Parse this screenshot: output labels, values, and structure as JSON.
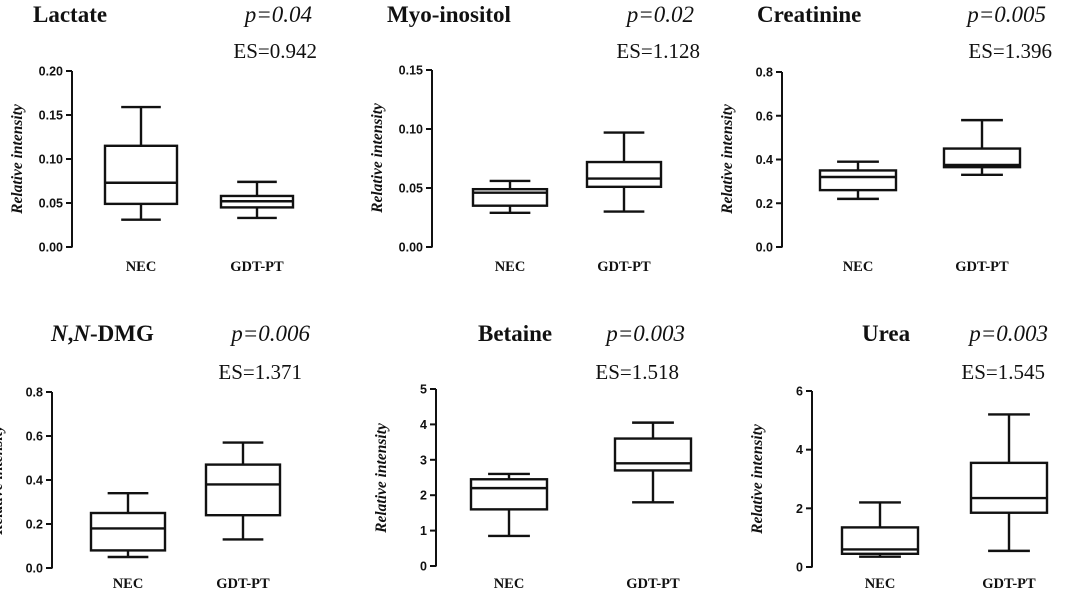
{
  "chart_data": [
    {
      "type": "box",
      "title": "Lactate",
      "title_parts": [
        {
          "text": "Lactate",
          "italic": false
        }
      ],
      "p_value": "p=0.04",
      "effect_size": "ES=0.942",
      "ylabel": "Relative intensity",
      "categories": [
        "NEC",
        "GDT-PT"
      ],
      "yticks": [
        "0.00",
        "0.05",
        "0.10",
        "0.15",
        "0.20"
      ],
      "ylim": [
        0,
        0.2
      ],
      "boxes": [
        {
          "name": "NEC",
          "min": 0.031,
          "q1": 0.049,
          "median": 0.073,
          "q3": 0.115,
          "max": 0.159
        },
        {
          "name": "GDT-PT",
          "min": 0.033,
          "q1": 0.045,
          "median": 0.052,
          "q3": 0.058,
          "max": 0.074
        }
      ]
    },
    {
      "type": "box",
      "title": "Myo-inositol",
      "title_parts": [
        {
          "text": "Myo-inositol",
          "italic": false
        }
      ],
      "p_value": "p=0.02",
      "effect_size": "ES=1.128",
      "ylabel": "Relative intensity",
      "categories": [
        "NEC",
        "GDT-PT"
      ],
      "yticks": [
        "0.00",
        "0.05",
        "0.10",
        "0.15"
      ],
      "ylim": [
        0,
        0.15
      ],
      "boxes": [
        {
          "name": "NEC",
          "min": 0.029,
          "q1": 0.035,
          "median": 0.046,
          "q3": 0.049,
          "max": 0.056
        },
        {
          "name": "GDT-PT",
          "min": 0.03,
          "q1": 0.051,
          "median": 0.058,
          "q3": 0.072,
          "max": 0.097
        }
      ]
    },
    {
      "type": "box",
      "title": "Creatinine",
      "title_parts": [
        {
          "text": "Creatinine",
          "italic": false
        }
      ],
      "p_value": "p=0.005",
      "effect_size": "ES=1.396",
      "ylabel": "Relative intensity",
      "categories": [
        "NEC",
        "GDT-PT"
      ],
      "yticks": [
        "0.0",
        "0.2",
        "0.4",
        "0.6",
        "0.8"
      ],
      "ylim": [
        0,
        0.8
      ],
      "boxes": [
        {
          "name": "NEC",
          "min": 0.22,
          "q1": 0.26,
          "median": 0.32,
          "q3": 0.35,
          "max": 0.39
        },
        {
          "name": "GDT-PT",
          "min": 0.33,
          "q1": 0.365,
          "median": 0.375,
          "q3": 0.45,
          "max": 0.58
        }
      ]
    },
    {
      "type": "box",
      "title": "N,N-DMG",
      "title_parts": [
        {
          "text": "N",
          "italic": true
        },
        {
          "text": ",",
          "italic": false
        },
        {
          "text": "N",
          "italic": true
        },
        {
          "text": "-DMG",
          "italic": false
        }
      ],
      "p_value": "p=0.006",
      "effect_size": "ES=1.371",
      "ylabel": "Relative intensity",
      "categories": [
        "NEC",
        "GDT-PT"
      ],
      "yticks": [
        "0.0",
        "0.2",
        "0.4",
        "0.6",
        "0.8"
      ],
      "ylim": [
        0,
        0.8
      ],
      "boxes": [
        {
          "name": "NEC",
          "min": 0.05,
          "q1": 0.08,
          "median": 0.18,
          "q3": 0.25,
          "max": 0.34
        },
        {
          "name": "GDT-PT",
          "min": 0.13,
          "q1": 0.24,
          "median": 0.38,
          "q3": 0.47,
          "max": 0.57
        }
      ]
    },
    {
      "type": "box",
      "title": "Betaine",
      "title_parts": [
        {
          "text": "Betaine",
          "italic": false
        }
      ],
      "p_value": "p=0.003",
      "effect_size": "ES=1.518",
      "ylabel": "Relative intensity",
      "categories": [
        "NEC",
        "GDT-PT"
      ],
      "yticks": [
        "0",
        "1",
        "2",
        "3",
        "4",
        "5"
      ],
      "ylim": [
        0,
        5
      ],
      "boxes": [
        {
          "name": "NEC",
          "min": 0.85,
          "q1": 1.6,
          "median": 2.2,
          "q3": 2.45,
          "max": 2.6
        },
        {
          "name": "GDT-PT",
          "min": 1.8,
          "q1": 2.7,
          "median": 2.9,
          "q3": 3.6,
          "max": 4.05
        }
      ]
    },
    {
      "type": "box",
      "title": "Urea",
      "title_parts": [
        {
          "text": "Urea",
          "italic": false
        }
      ],
      "p_value": "p=0.003",
      "effect_size": "ES=1.545",
      "ylabel": "Relative intensity",
      "categories": [
        "NEC",
        "GDT-PT"
      ],
      "yticks": [
        "0",
        "2",
        "4",
        "6"
      ],
      "ylim": [
        0,
        6
      ],
      "boxes": [
        {
          "name": "NEC",
          "min": 0.35,
          "q1": 0.45,
          "median": 0.6,
          "q3": 1.35,
          "max": 2.2
        },
        {
          "name": "GDT-PT",
          "min": 0.55,
          "q1": 1.85,
          "median": 2.35,
          "q3": 3.55,
          "max": 5.2
        }
      ]
    }
  ]
}
